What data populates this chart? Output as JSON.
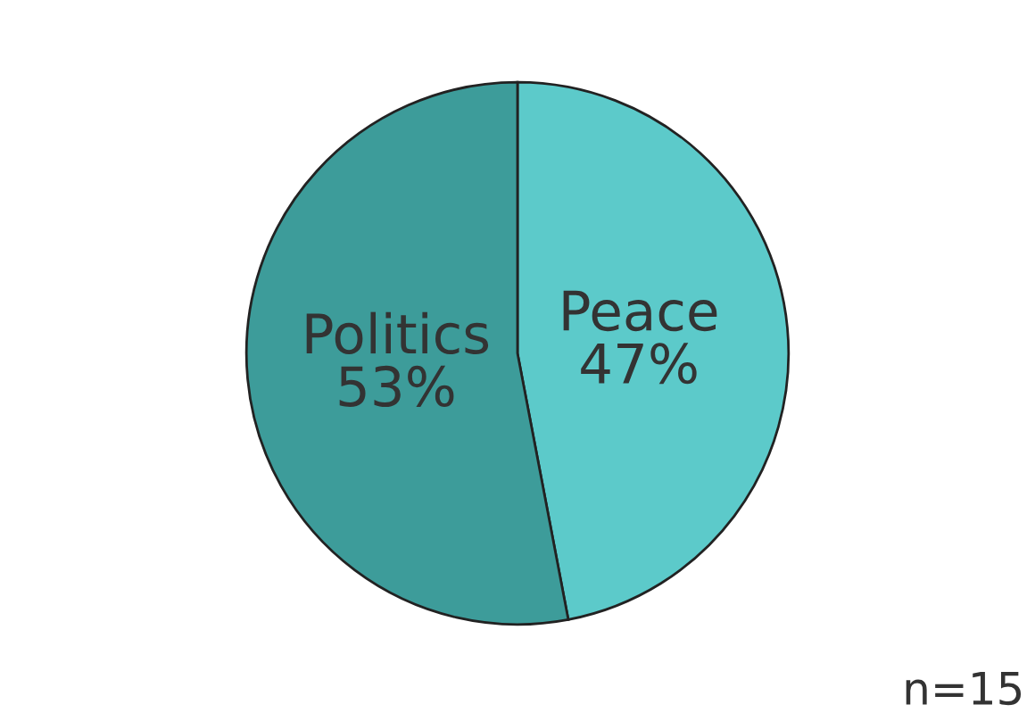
{
  "chart_data": {
    "type": "pie",
    "categories": [
      "Peace",
      "Politics"
    ],
    "values": [
      47,
      53
    ],
    "value_labels": [
      "47%",
      "53%"
    ],
    "colors": [
      "#5ccaca",
      "#3d9c9a"
    ],
    "annotations": [
      "n=15"
    ],
    "legend": false
  }
}
